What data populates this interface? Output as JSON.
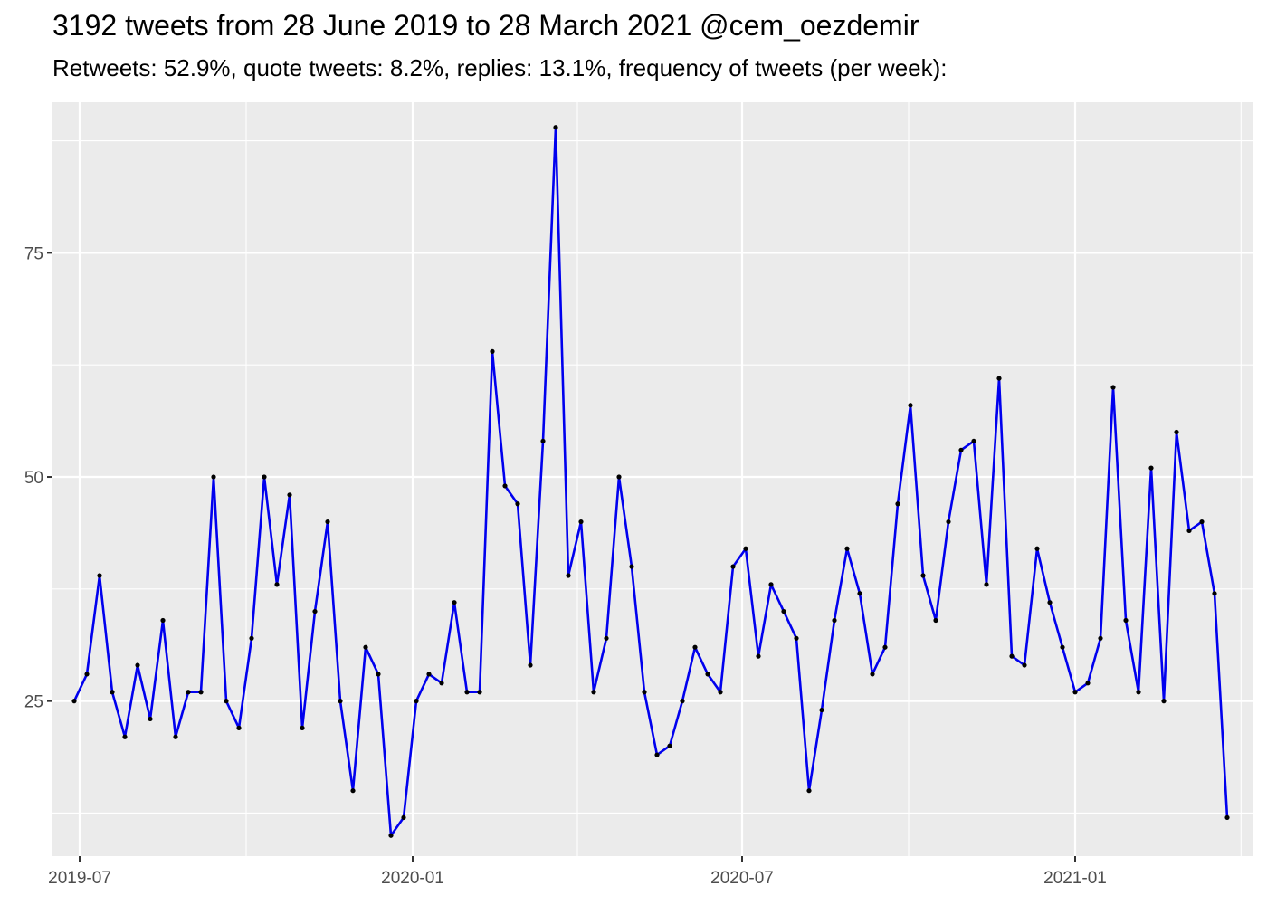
{
  "chart_data": {
    "type": "line",
    "title": "3192 tweets from 28 June 2019 to 28 March 2021 @cem_oezdemir",
    "subtitle": "Retweets: 52.9%, quote tweets: 8.2%, replies: 13.1%, frequency of tweets (per week):",
    "xlabel": "",
    "ylabel": "",
    "x_ticks": [
      "2019-07-01",
      "2020-01-01",
      "2020-07-01",
      "2021-01-01"
    ],
    "x_tick_labels": [
      "2019-07",
      "2020-01",
      "2020-07",
      "2021-01"
    ],
    "x_range": [
      "2019-06-16",
      "2021-04-09"
    ],
    "y_ticks": [
      25,
      50,
      75
    ],
    "y_tick_labels": [
      "25",
      "50",
      "75"
    ],
    "ylim": [
      7.7,
      91.8
    ],
    "grid": true,
    "line_color": "#0000ee",
    "point_color": "#000000",
    "panel_color": "#ebebeb",
    "x_start": "2019-06-28",
    "x_step_days": 7,
    "values": [
      25,
      28,
      39,
      26,
      21,
      29,
      23,
      34,
      21,
      26,
      26,
      50,
      25,
      22,
      32,
      50,
      38,
      48,
      22,
      35,
      45,
      25,
      15,
      31,
      28,
      10,
      12,
      25,
      28,
      27,
      36,
      26,
      26,
      64,
      49,
      47,
      29,
      54,
      89,
      39,
      45,
      26,
      32,
      50,
      40,
      26,
      19,
      20,
      25,
      31,
      28,
      26,
      40,
      42,
      30,
      38,
      35,
      32,
      15,
      24,
      34,
      42,
      37,
      28,
      31,
      47,
      58,
      39,
      34,
      45,
      53,
      54,
      38,
      61,
      30,
      29,
      42,
      36,
      31,
      26,
      27,
      32,
      60,
      34,
      26,
      51,
      25,
      55,
      44,
      45,
      37,
      12
    ]
  }
}
